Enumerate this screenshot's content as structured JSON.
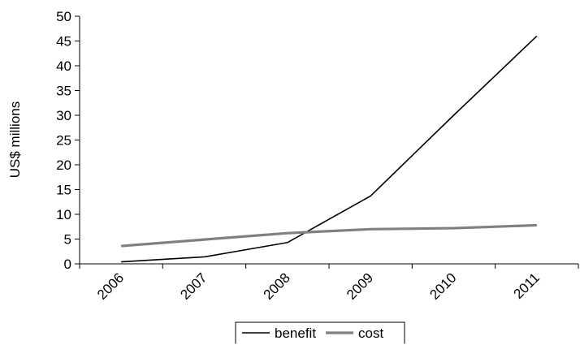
{
  "chart_data": {
    "type": "line",
    "title": "",
    "xlabel": "",
    "ylabel": "US$ millions",
    "ylim": [
      0,
      50
    ],
    "yticks": [
      0,
      5,
      10,
      15,
      20,
      25,
      30,
      35,
      40,
      45,
      50
    ],
    "categories": [
      "2006",
      "2007",
      "2008",
      "2009",
      "2010",
      "2011"
    ],
    "grid": false,
    "legend_position": "bottom",
    "series": [
      {
        "name": "benefit",
        "values": [
          0.4,
          1.4,
          4.3,
          13.7,
          30.0,
          46.0
        ],
        "color": "#000000"
      },
      {
        "name": "cost",
        "values": [
          3.6,
          4.9,
          6.2,
          7.0,
          7.2,
          7.8
        ],
        "color": "#808080"
      }
    ]
  }
}
